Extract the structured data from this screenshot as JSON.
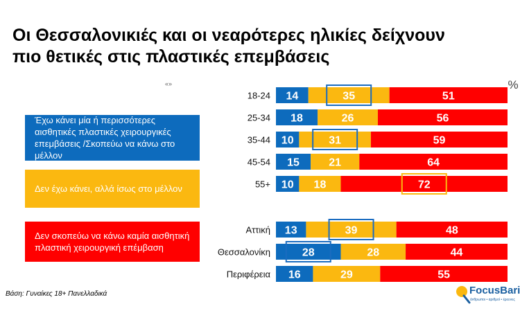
{
  "title": {
    "line1": "Οι Θεσσαλονικιές και οι νεαρότερες ηλικίες δείχνουν",
    "line2": "πιο θετικές στις πλαστικές επεμβάσεις"
  },
  "quote_mark": "«»",
  "legend": [
    {
      "label": "Έχω κάνει μία ή περισσότερες αισθητικές πλαστικές χειρουργικές επεμβάσεις /Σκοπεύω να κάνω στο μέλλον",
      "color": "#0d6bbd"
    },
    {
      "label": "Δεν έχω κάνει, αλλά ίσως στο μέλλον",
      "color": "#fbb810"
    },
    {
      "label": "Δεν σκοπεύω να κάνω καμία  αισθητική πλαστική χειρουργική επέμβαση",
      "color": "#ff0000"
    }
  ],
  "chart_data": {
    "type": "bar",
    "orientation": "horizontal",
    "stacked": true,
    "unit_label": "%",
    "categories": [
      "18-24",
      "25-34",
      "35-44",
      "45-54",
      "55+",
      "Αττική",
      "Θεσσαλονίκη",
      "Περιφέρεια"
    ],
    "series": [
      {
        "name": "Έχω κάνει / Σκοπεύω",
        "color": "#0d6bbd",
        "values": [
          14,
          18,
          10,
          15,
          10,
          13,
          28,
          16
        ]
      },
      {
        "name": "Ίσως στο μέλλον",
        "color": "#fbb810",
        "values": [
          35,
          26,
          31,
          21,
          18,
          39,
          28,
          29
        ]
      },
      {
        "name": "Δεν σκοπεύω",
        "color": "#ff0000",
        "values": [
          51,
          56,
          59,
          64,
          72,
          48,
          44,
          55
        ]
      }
    ],
    "highlights": [
      {
        "category": "18-24",
        "series": 1
      },
      {
        "category": "35-44",
        "series": 1
      },
      {
        "category": "55+",
        "series": 2
      },
      {
        "category": "Αττική",
        "series": 1
      },
      {
        "category": "Θεσσαλονίκη",
        "series": 0
      }
    ],
    "xlim": [
      0,
      100
    ]
  },
  "base_note": "Βάση: Γυναίκες 18+ Πανελλαδικά",
  "logo": {
    "name": "FocusBari",
    "tagline": "άνθρωποι • αριθμοί • έρευνες"
  }
}
